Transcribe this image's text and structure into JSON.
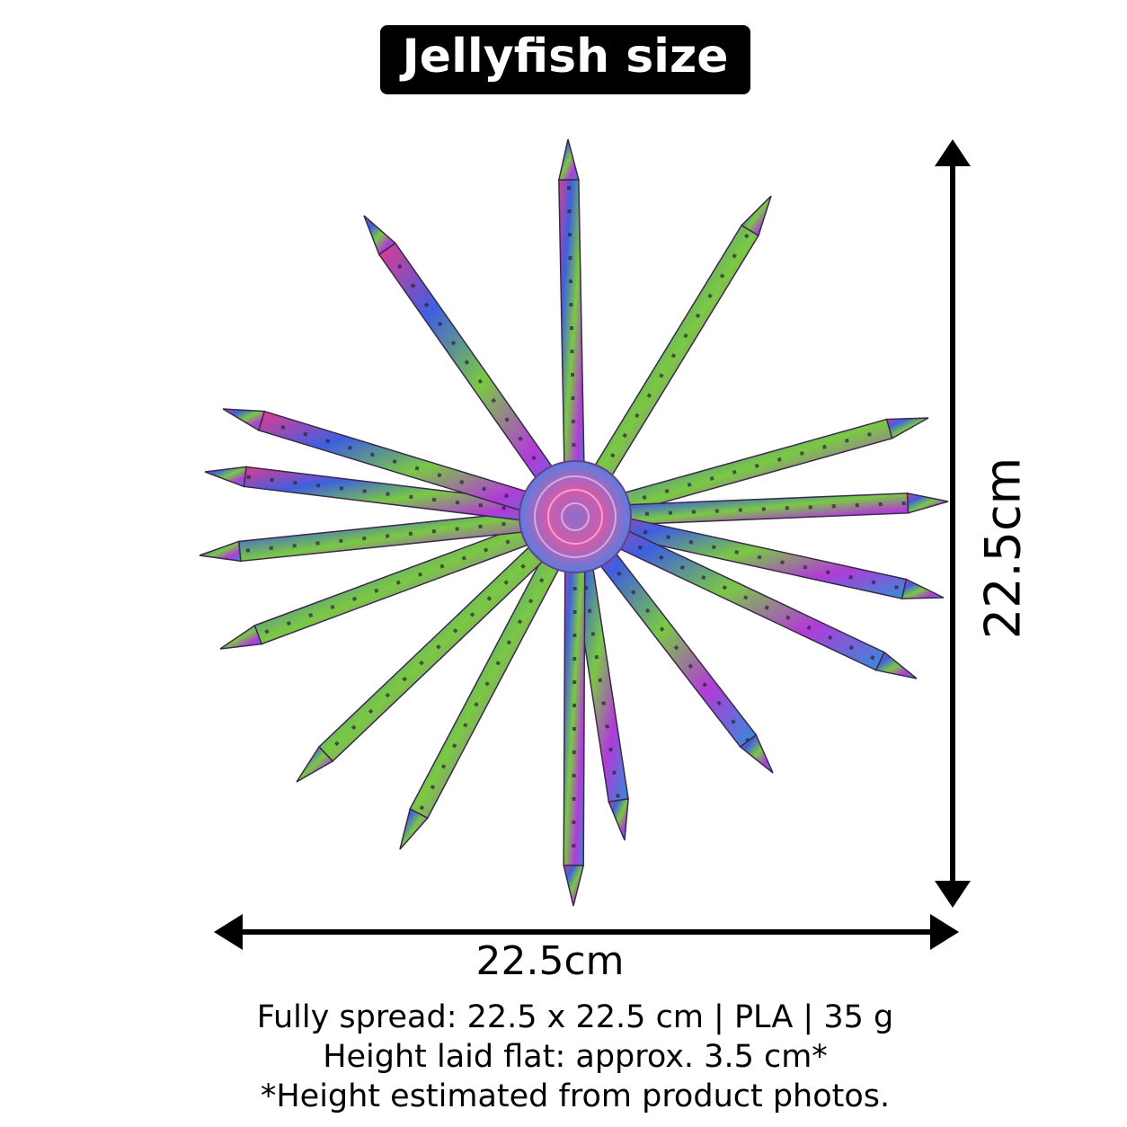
{
  "header": {
    "title": "Jellyfish size"
  },
  "dimensions": {
    "height": "22.5cm",
    "width": "22.5cm"
  },
  "caption": [
    "Fully spread: 22.5 x 22.5 cm | PLA | 35 g",
    "Height laid flat: approx. 3.5 cm*",
    "*Height estimated from product photos."
  ]
}
